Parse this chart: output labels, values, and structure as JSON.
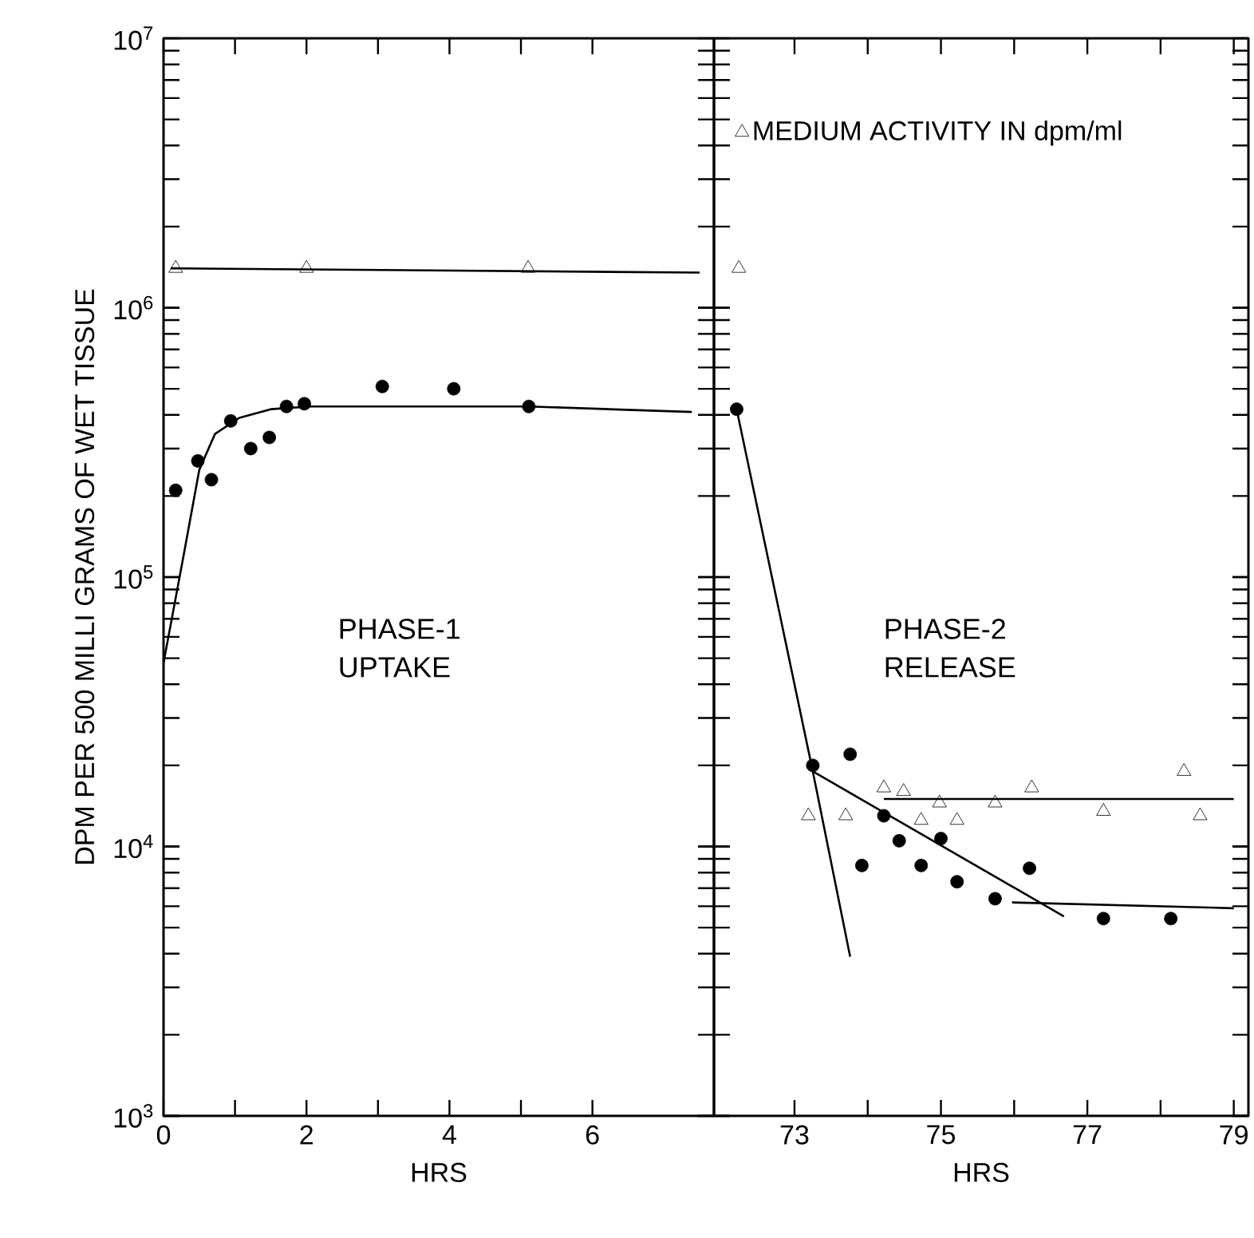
{
  "chart_data": [
    {
      "type": "scatter",
      "log": true,
      "xlabel": "HRS",
      "ylabel": "DPM PER 500 MILLI GRAMS OF WET TISSUE",
      "xlim": [
        0,
        7.7
      ],
      "ylim": [
        1000,
        10000000
      ],
      "xticks": [
        0,
        2,
        4,
        6
      ],
      "yticks": [
        {
          "value": 1000,
          "label": "10$^{3}$"
        },
        {
          "value": 10000,
          "label": "10$^{4}$"
        },
        {
          "value": 100000,
          "label": "10$^{5}$"
        },
        {
          "value": 1000000,
          "label": "10$^{6}$"
        },
        {
          "value": 10000000,
          "label": "10$^{7}$"
        }
      ],
      "annotations": [
        "PHASE-1 UPTAKE"
      ],
      "series": [
        {
          "marker": "triangle",
          "color": "#000000",
          "x": [
            0.17,
            2.0,
            5.1
          ],
          "values": [
            1400000,
            1400000,
            1400000
          ]
        },
        {
          "type": "line",
          "marker": "none",
          "color": "#000000",
          "x": [
            0.1,
            7.5
          ],
          "values": [
            1400000,
            1350000
          ]
        },
        {
          "marker": "circle",
          "color": "#000000",
          "x": [
            0.17,
            0.48,
            0.67,
            0.94,
            1.22,
            1.48,
            1.72,
            1.97,
            3.06,
            4.06,
            5.11
          ],
          "values": [
            210000,
            270000,
            230000,
            380000,
            300000,
            330000,
            430000,
            440000,
            510000,
            500000,
            430000
          ]
        },
        {
          "type": "line",
          "marker": "none",
          "color": "#000000",
          "x": [
            0,
            0.28,
            0.5,
            0.72,
            1.06,
            1.5,
            2.06,
            3.28,
            5.11,
            7.39
          ],
          "values": [
            48000,
            120000,
            250000,
            340000,
            390000,
            420000,
            430000,
            430000,
            430000,
            410000
          ]
        }
      ]
    },
    {
      "type": "scatter",
      "log": true,
      "xlabel": "HRS",
      "tick_labels": "x",
      "legend": "top left",
      "xlim": [
        71.9,
        79.2
      ],
      "ylim": [
        1000,
        10000000
      ],
      "xticks": [
        73,
        75,
        77,
        79
      ],
      "yticks": [
        1000,
        10000,
        100000,
        1000000,
        10000000
      ],
      "annotations": [
        "PHASE-2 RELEASE"
      ],
      "series": [
        {
          "marker": "triangle",
          "color": "#000000",
          "name": "MEDIUM ACTIVITY IN dpm/ml",
          "x": [
            72.24,
            73.19,
            73.7,
            74.22,
            74.49,
            74.73,
            74.98,
            75.22,
            75.74,
            76.24,
            77.22,
            78.32,
            78.54
          ],
          "values": [
            1400000,
            13000,
            13000,
            16500,
            16000,
            12500,
            14500,
            12500,
            14500,
            16500,
            13500,
            19000,
            13000
          ]
        },
        {
          "type": "line",
          "marker": "none",
          "color": "#000000",
          "x": [
            74.22,
            79
          ],
          "values": [
            15000,
            15000
          ]
        },
        {
          "marker": "circle",
          "color": "#000000",
          "x": [
            72.21,
            73.25,
            73.76,
            73.92,
            74.22,
            74.43,
            74.73,
            75.0,
            75.22,
            75.74,
            76.21,
            77.22,
            78.14
          ],
          "values": [
            420000,
            20000,
            22000,
            8500,
            13000,
            10500,
            8500,
            10700,
            7400,
            6400,
            8300,
            5400,
            5400
          ]
        },
        {
          "type": "line",
          "marker": "none",
          "color": "#000000",
          "x": [
            72.21,
            73.25,
            73.76
          ],
          "values": [
            420000,
            19000,
            3900
          ]
        },
        {
          "type": "line",
          "marker": "none",
          "color": "#000000",
          "x": [
            73.25,
            76.68
          ],
          "values": [
            19000,
            5500
          ]
        },
        {
          "type": "line",
          "marker": "none",
          "color": "#000000",
          "x": [
            75.97,
            79
          ],
          "values": [
            6200,
            5900
          ]
        }
      ]
    }
  ]
}
